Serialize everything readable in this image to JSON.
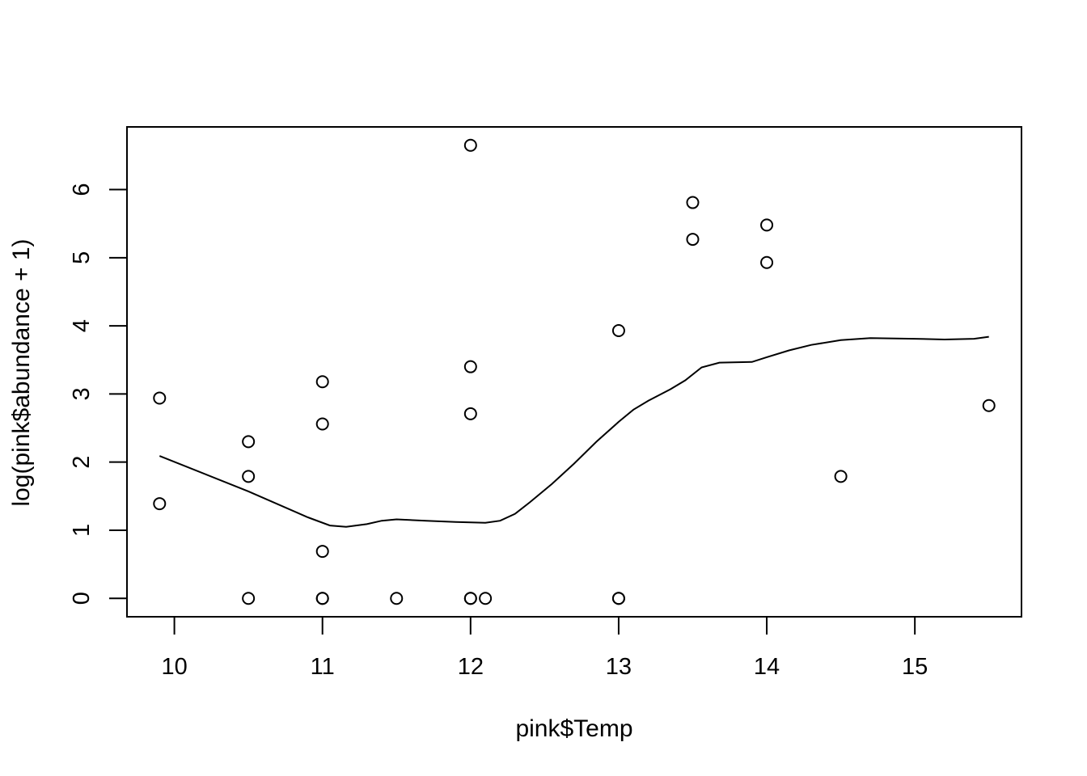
{
  "chart_data": {
    "type": "scatter",
    "title": "",
    "xlabel": "pink$Temp",
    "ylabel": "log(pink$abundance + 1)",
    "xlim": [
      9.68,
      15.72
    ],
    "ylim": [
      -0.27,
      6.92
    ],
    "x_ticks": [
      "10",
      "11",
      "12",
      "13",
      "14",
      "15"
    ],
    "y_ticks": [
      "0",
      "1",
      "2",
      "3",
      "4",
      "5",
      "6"
    ],
    "grid": false,
    "legend": "none",
    "points": [
      {
        "x": 9.9,
        "y": 2.94
      },
      {
        "x": 9.9,
        "y": 1.39
      },
      {
        "x": 10.5,
        "y": 2.3
      },
      {
        "x": 10.5,
        "y": 1.79
      },
      {
        "x": 10.5,
        "y": 0
      },
      {
        "x": 11.0,
        "y": 3.18
      },
      {
        "x": 11.0,
        "y": 2.56
      },
      {
        "x": 11.0,
        "y": 0.69
      },
      {
        "x": 11.0,
        "y": 0
      },
      {
        "x": 11.0,
        "y": 0
      },
      {
        "x": 11.5,
        "y": 0
      },
      {
        "x": 12.0,
        "y": 6.65
      },
      {
        "x": 12.0,
        "y": 3.4
      },
      {
        "x": 12.0,
        "y": 2.71
      },
      {
        "x": 12.0,
        "y": 0
      },
      {
        "x": 12.0,
        "y": 0
      },
      {
        "x": 12.1,
        "y": 0
      },
      {
        "x": 13.0,
        "y": 3.93
      },
      {
        "x": 13.0,
        "y": 0
      },
      {
        "x": 13.0,
        "y": 0
      },
      {
        "x": 13.5,
        "y": 5.81
      },
      {
        "x": 13.5,
        "y": 5.27
      },
      {
        "x": 14.0,
        "y": 5.48
      },
      {
        "x": 14.0,
        "y": 4.93
      },
      {
        "x": 14.5,
        "y": 1.79
      },
      {
        "x": 15.5,
        "y": 2.83
      }
    ],
    "smooth_line": [
      {
        "x": 9.9,
        "y": 2.09
      },
      {
        "x": 10.5,
        "y": 1.57
      },
      {
        "x": 10.9,
        "y": 1.19
      },
      {
        "x": 11.05,
        "y": 1.07
      },
      {
        "x": 11.16,
        "y": 1.05
      },
      {
        "x": 11.3,
        "y": 1.09
      },
      {
        "x": 11.4,
        "y": 1.14
      },
      {
        "x": 11.5,
        "y": 1.16
      },
      {
        "x": 11.7,
        "y": 1.14
      },
      {
        "x": 11.9,
        "y": 1.12
      },
      {
        "x": 12.1,
        "y": 1.11
      },
      {
        "x": 12.2,
        "y": 1.14
      },
      {
        "x": 12.3,
        "y": 1.24
      },
      {
        "x": 12.4,
        "y": 1.41
      },
      {
        "x": 12.55,
        "y": 1.68
      },
      {
        "x": 12.7,
        "y": 1.98
      },
      {
        "x": 12.85,
        "y": 2.3
      },
      {
        "x": 13.0,
        "y": 2.59
      },
      {
        "x": 13.1,
        "y": 2.77
      },
      {
        "x": 13.2,
        "y": 2.9
      },
      {
        "x": 13.35,
        "y": 3.07
      },
      {
        "x": 13.45,
        "y": 3.2
      },
      {
        "x": 13.56,
        "y": 3.39
      },
      {
        "x": 13.68,
        "y": 3.46
      },
      {
        "x": 13.9,
        "y": 3.47
      },
      {
        "x": 14.0,
        "y": 3.54
      },
      {
        "x": 14.15,
        "y": 3.64
      },
      {
        "x": 14.3,
        "y": 3.72
      },
      {
        "x": 14.5,
        "y": 3.79
      },
      {
        "x": 14.7,
        "y": 3.82
      },
      {
        "x": 15.0,
        "y": 3.81
      },
      {
        "x": 15.2,
        "y": 3.8
      },
      {
        "x": 15.4,
        "y": 3.81
      },
      {
        "x": 15.5,
        "y": 3.84
      }
    ]
  }
}
